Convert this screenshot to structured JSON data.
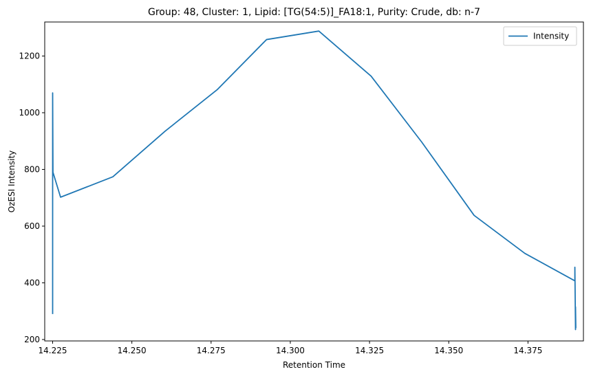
{
  "chart_data": {
    "type": "line",
    "title": "Group: 48, Cluster: 1, Lipid: [TG(54:5)]_FA18:1, Purity: Crude, db: n-7",
    "xlabel": "Retention Time",
    "ylabel": "OzESI Intensity",
    "xlim": [
      14.2225,
      14.3925
    ],
    "ylim": [
      195,
      1320
    ],
    "xticks": [
      14.225,
      14.25,
      14.275,
      14.3,
      14.325,
      14.35,
      14.375
    ],
    "xtick_labels": [
      "14.225",
      "14.250",
      "14.275",
      "14.300",
      "14.325",
      "14.350",
      "14.375"
    ],
    "yticks": [
      200,
      400,
      600,
      800,
      1000,
      1200
    ],
    "ytick_labels": [
      "200",
      "400",
      "600",
      "800",
      "1000",
      "1200"
    ],
    "grid": false,
    "legend_position": "upper right",
    "series": [
      {
        "name": "Intensity",
        "color": "#1f77b4",
        "points": [
          {
            "x": 14.225,
            "y": 290
          },
          {
            "x": 14.225,
            "y": 1070
          },
          {
            "x": 14.2251,
            "y": 790
          },
          {
            "x": 14.2275,
            "y": 702
          },
          {
            "x": 14.244,
            "y": 774
          },
          {
            "x": 14.2605,
            "y": 935
          },
          {
            "x": 14.277,
            "y": 1082
          },
          {
            "x": 14.2925,
            "y": 1258
          },
          {
            "x": 14.309,
            "y": 1288
          },
          {
            "x": 14.3255,
            "y": 1129
          },
          {
            "x": 14.3415,
            "y": 896
          },
          {
            "x": 14.358,
            "y": 638
          },
          {
            "x": 14.374,
            "y": 504
          },
          {
            "x": 14.3898,
            "y": 407
          },
          {
            "x": 14.3898,
            "y": 455
          },
          {
            "x": 14.39,
            "y": 235
          },
          {
            "x": 14.39,
            "y": 315
          },
          {
            "x": 14.3901,
            "y": 240
          }
        ]
      }
    ]
  }
}
